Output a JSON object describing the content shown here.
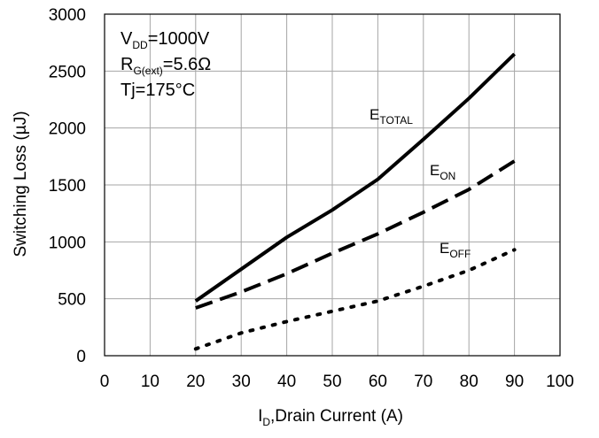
{
  "chart_data": {
    "type": "line",
    "title": "",
    "xlabel": "I",
    "xlabel_sub": "D",
    "xlabel_rest": ",Drain Current (A)",
    "ylabel": "Switching Loss (µJ)",
    "xlim": [
      0,
      100
    ],
    "ylim": [
      0,
      3000
    ],
    "x_ticks": [
      0,
      10,
      20,
      30,
      40,
      50,
      60,
      70,
      80,
      90,
      100
    ],
    "y_ticks": [
      0,
      500,
      1000,
      1500,
      2000,
      2500,
      3000
    ],
    "grid": true,
    "conditions": [
      {
        "main": "V",
        "sub": "DD",
        "rest": "=1000V"
      },
      {
        "main": "R",
        "sub": "G(ext)",
        "rest": "=5.6Ω"
      },
      {
        "main": "Tj=175°C",
        "sub": "",
        "rest": ""
      }
    ],
    "series": [
      {
        "name": "E_TOTAL",
        "label_main": "E",
        "label_sub": "TOTAL",
        "style": "solid",
        "x": [
          20,
          30,
          40,
          50,
          60,
          70,
          80,
          90
        ],
        "values": [
          480,
          760,
          1040,
          1280,
          1550,
          1900,
          2260,
          2650
        ]
      },
      {
        "name": "E_ON",
        "label_main": "E",
        "label_sub": "ON",
        "style": "dashed",
        "x": [
          20,
          30,
          40,
          50,
          60,
          70,
          80,
          90
        ],
        "values": [
          420,
          560,
          720,
          900,
          1070,
          1260,
          1460,
          1710
        ]
      },
      {
        "name": "E_OFF",
        "label_main": "E",
        "label_sub": "OFF",
        "style": "dotted",
        "x": [
          20,
          30,
          40,
          50,
          60,
          70,
          80,
          90
        ],
        "values": [
          60,
          200,
          300,
          390,
          480,
          610,
          750,
          930
        ]
      }
    ]
  }
}
